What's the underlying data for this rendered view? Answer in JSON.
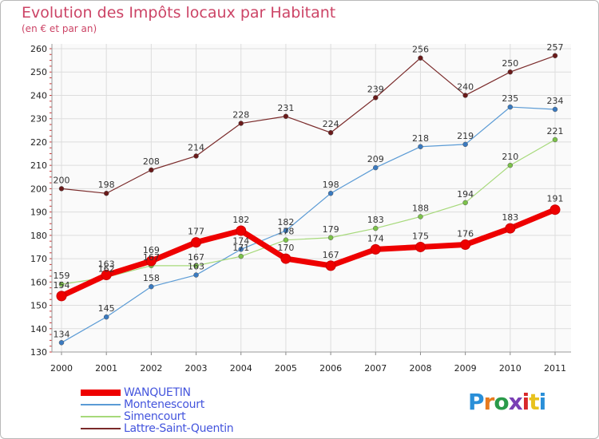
{
  "header": {
    "title": "Evolution des Impôts locaux par Habitant",
    "subtitle": "(en € et par an)"
  },
  "logo": {
    "text": "Proxiti",
    "colors": [
      "#2a8fd8",
      "#e87a1e",
      "#2a9a4a",
      "#7a3fb5",
      "#d8282a",
      "#e8c21e",
      "#2a8fd8"
    ]
  },
  "chart_data": {
    "type": "line",
    "title": "Evolution des Impôts locaux par Habitant",
    "subtitle": "(en € et par an)",
    "xlabel": "",
    "ylabel": "",
    "x": [
      "2000",
      "2001",
      "2002",
      "2003",
      "2004",
      "2005",
      "2006",
      "2007",
      "2008",
      "2009",
      "2010",
      "2011"
    ],
    "ylim": [
      130,
      260
    ],
    "yticks": [
      130,
      140,
      150,
      160,
      170,
      180,
      190,
      200,
      210,
      220,
      230,
      240,
      250,
      260
    ],
    "grid": true,
    "legend_position": "bottom-left",
    "series": [
      {
        "name": "Lattre-Saint-Quentin",
        "color": "#7a2a2a",
        "marker": "#6a1a1a",
        "width": 1.2,
        "values": [
          200,
          198,
          208,
          214,
          228,
          231,
          224,
          239,
          256,
          240,
          250,
          257
        ]
      },
      {
        "name": "Montenescourt",
        "color": "#5b9bd5",
        "marker": "#3a7ac0",
        "width": 1.2,
        "values": [
          134,
          145,
          158,
          163,
          174,
          182,
          198,
          209,
          218,
          219,
          235,
          234
        ]
      },
      {
        "name": "Simencourt",
        "color": "#a6d97a",
        "marker": "#7cc24a",
        "width": 1.2,
        "values": [
          159,
          162,
          167,
          167,
          171,
          178,
          179,
          183,
          188,
          194,
          210,
          221
        ]
      },
      {
        "name": "WANQUETIN",
        "color": "#ee0000",
        "marker": "#ee0000",
        "width": 7,
        "values": [
          154,
          163,
          169,
          177,
          182,
          170,
          167,
          174,
          175,
          176,
          183,
          191
        ]
      }
    ]
  }
}
